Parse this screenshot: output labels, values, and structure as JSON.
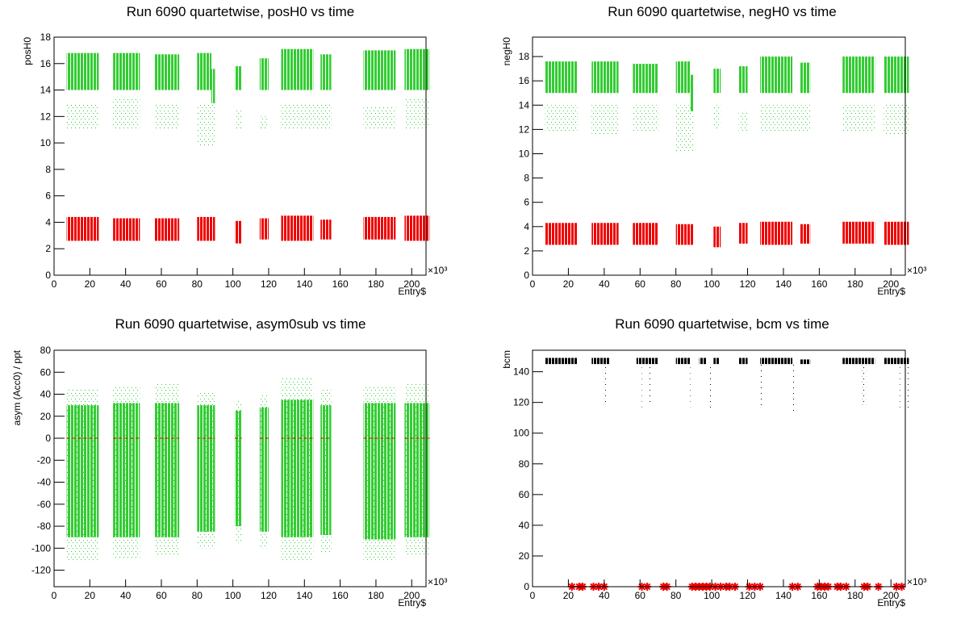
{
  "chart_data": [
    {
      "type": "scatter",
      "title": "Run 6090 quartetwise, posH0 vs time",
      "ylabel": "posH0",
      "xlabel": "Entry$",
      "x_multiplier": "×10³",
      "xlim": [
        0,
        208
      ],
      "ylim": [
        0,
        18
      ],
      "xticks": [
        0,
        20,
        40,
        60,
        80,
        100,
        120,
        140,
        160,
        180,
        200
      ],
      "yticks": [
        0,
        2,
        4,
        6,
        8,
        10,
        12,
        14,
        16,
        18
      ],
      "series": [
        {
          "color": "#33cc33",
          "density": "dense",
          "segments": [
            [
              7,
              25,
              14,
              16.8
            ],
            [
              33,
              48,
              14,
              16.8
            ],
            [
              56,
              70,
              14,
              16.7
            ],
            [
              80,
              88,
              14,
              16.8
            ],
            [
              88,
              90,
              13,
              15.6
            ],
            [
              101,
              105,
              14,
              15.8
            ],
            [
              115,
              120,
              14,
              16.4
            ],
            [
              127,
              145,
              14,
              17.1
            ],
            [
              149,
              155,
              14,
              16.7
            ],
            [
              173,
              191,
              14,
              17
            ],
            [
              196,
              210,
              14,
              17.1
            ]
          ]
        },
        {
          "color": "#33cc33",
          "density": "sparse",
          "segments": [
            [
              7,
              25,
              11,
              13
            ],
            [
              33,
              48,
              11,
              13.5
            ],
            [
              56,
              70,
              11,
              13
            ],
            [
              80,
              90,
              9.8,
              13
            ],
            [
              101,
              105,
              11,
              12.5
            ],
            [
              115,
              120,
              11,
              12
            ],
            [
              127,
              155,
              11,
              13
            ],
            [
              173,
              191,
              11,
              12.8
            ],
            [
              196,
              210,
              11,
              13.5
            ]
          ]
        },
        {
          "color": "#ee0000",
          "density": "dense",
          "segments": [
            [
              7,
              25,
              2.6,
              4.4
            ],
            [
              33,
              48,
              2.6,
              4.3
            ],
            [
              56,
              70,
              2.6,
              4.3
            ],
            [
              80,
              90,
              2.6,
              4.4
            ],
            [
              101,
              105,
              2.4,
              4.1
            ],
            [
              115,
              120,
              2.7,
              4.3
            ],
            [
              127,
              145,
              2.6,
              4.5
            ],
            [
              149,
              155,
              2.7,
              4.2
            ],
            [
              173,
              191,
              2.7,
              4.4
            ],
            [
              196,
              210,
              2.6,
              4.5
            ]
          ]
        }
      ]
    },
    {
      "type": "scatter",
      "title": "Run 6090 quartetwise, negH0 vs time",
      "ylabel": "negH0",
      "xlabel": "Entry$",
      "x_multiplier": "×10³",
      "xlim": [
        0,
        208
      ],
      "ylim": [
        0,
        19.6
      ],
      "xticks": [
        0,
        20,
        40,
        60,
        80,
        100,
        120,
        140,
        160,
        180,
        200
      ],
      "yticks": [
        0,
        2,
        4,
        6,
        8,
        10,
        12,
        14,
        16,
        18
      ],
      "series": [
        {
          "color": "#33cc33",
          "density": "dense",
          "segments": [
            [
              7,
              25,
              15,
              17.6
            ],
            [
              33,
              48,
              15,
              17.6
            ],
            [
              56,
              70,
              15,
              17.4
            ],
            [
              80,
              88,
              15,
              17.6
            ],
            [
              88,
              90,
              13.5,
              16.5
            ],
            [
              101,
              105,
              15,
              17
            ],
            [
              115,
              120,
              15,
              17.2
            ],
            [
              127,
              145,
              15,
              18
            ],
            [
              149,
              155,
              15,
              17.5
            ],
            [
              173,
              191,
              15,
              18
            ],
            [
              196,
              210,
              15,
              18
            ]
          ]
        },
        {
          "color": "#33cc33",
          "density": "sparse",
          "segments": [
            [
              7,
              25,
              11.8,
              14
            ],
            [
              33,
              48,
              11.5,
              14.2
            ],
            [
              56,
              70,
              11.8,
              14
            ],
            [
              80,
              90,
              10.2,
              14
            ],
            [
              101,
              105,
              12,
              14
            ],
            [
              115,
              120,
              11.8,
              13.5
            ],
            [
              127,
              155,
              11.8,
              14
            ],
            [
              173,
              191,
              11.8,
              14
            ],
            [
              196,
              210,
              11.6,
              14.2
            ]
          ]
        },
        {
          "color": "#ee0000",
          "density": "dense",
          "segments": [
            [
              7,
              25,
              2.5,
              4.3
            ],
            [
              33,
              48,
              2.5,
              4.3
            ],
            [
              56,
              70,
              2.5,
              4.3
            ],
            [
              80,
              90,
              2.5,
              4.2
            ],
            [
              101,
              105,
              2.3,
              4
            ],
            [
              115,
              120,
              2.6,
              4.3
            ],
            [
              127,
              145,
              2.5,
              4.4
            ],
            [
              149,
              155,
              2.6,
              4.2
            ],
            [
              173,
              191,
              2.6,
              4.4
            ],
            [
              196,
              210,
              2.5,
              4.4
            ]
          ]
        }
      ]
    },
    {
      "type": "scatter",
      "title": "Run 6090 quartetwise, asym0sub vs time",
      "ylabel": "asym (Acc0) / ppt",
      "xlabel": "Entry$",
      "x_multiplier": "×10³",
      "xlim": [
        0,
        208
      ],
      "ylim": [
        -135,
        80
      ],
      "xticks": [
        0,
        20,
        40,
        60,
        80,
        100,
        120,
        140,
        160,
        180,
        200
      ],
      "yticks": [
        -120,
        -100,
        -80,
        -60,
        -40,
        -20,
        0,
        20,
        40,
        60,
        80
      ],
      "reference_line": {
        "value": 0,
        "color": "#ee0000"
      },
      "series": [
        {
          "color": "#33cc33",
          "density": "dense",
          "segments": [
            [
              7,
              25,
              -90,
              30
            ],
            [
              33,
              48,
              -90,
              32
            ],
            [
              56,
              70,
              -90,
              32
            ],
            [
              80,
              90,
              -85,
              30
            ],
            [
              101,
              105,
              -80,
              25
            ],
            [
              115,
              120,
              -85,
              28
            ],
            [
              127,
              145,
              -90,
              35
            ],
            [
              149,
              155,
              -88,
              30
            ],
            [
              173,
              191,
              -92,
              32
            ],
            [
              196,
              210,
              -90,
              32
            ]
          ]
        },
        {
          "color": "#33cc33",
          "density": "sparse",
          "segments": [
            [
              7,
              25,
              -112,
              45
            ],
            [
              33,
              48,
              -110,
              48
            ],
            [
              56,
              70,
              -108,
              50
            ],
            [
              80,
              90,
              -100,
              42
            ],
            [
              101,
              105,
              -95,
              35
            ],
            [
              115,
              120,
              -100,
              40
            ],
            [
              127,
              145,
              -112,
              55
            ],
            [
              149,
              155,
              -105,
              45
            ],
            [
              173,
              191,
              -112,
              48
            ],
            [
              196,
              210,
              -108,
              50
            ]
          ]
        }
      ]
    },
    {
      "type": "scatter",
      "title": "Run 6090 quartetwise, bcm vs time",
      "ylabel": "bcm",
      "xlabel": "Entry$",
      "x_multiplier": "×10³",
      "xlim": [
        0,
        208
      ],
      "ylim": [
        0,
        154
      ],
      "xticks": [
        0,
        20,
        40,
        60,
        80,
        100,
        120,
        140,
        160,
        180,
        200
      ],
      "yticks": [
        0,
        20,
        40,
        60,
        80,
        100,
        120,
        140
      ],
      "series": [
        {
          "color": "#000000",
          "density": "dense",
          "segments": [
            [
              7,
              25,
              145,
              149
            ],
            [
              33,
              43,
              145,
              149
            ],
            [
              58,
              70,
              145,
              149
            ],
            [
              80,
              88,
              145,
              149
            ],
            [
              93,
              97,
              145,
              149
            ],
            [
              101,
              104,
              145,
              149
            ],
            [
              115,
              120,
              145,
              149
            ],
            [
              127,
              145,
              145,
              149
            ],
            [
              149,
              155,
              145,
              148
            ],
            [
              173,
              191,
              145,
              149
            ],
            [
              196,
              210,
              145,
              149
            ]
          ]
        },
        {
          "color": "#000000",
          "density": "sparse",
          "segments": [
            [
              40,
              41,
              118,
              145
            ],
            [
              61,
              62,
              115,
              145
            ],
            [
              65,
              66,
              120,
              145
            ],
            [
              88,
              89,
              117,
              145
            ],
            [
              99,
              100,
              114,
              145
            ],
            [
              127,
              128,
              117,
              145
            ],
            [
              145,
              146,
              114,
              145
            ],
            [
              184,
              186,
              118,
              145
            ],
            [
              205,
              206,
              114,
              145
            ],
            [
              209,
              210,
              114,
              145
            ]
          ]
        },
        {
          "color": "#ee0000",
          "marker": "star",
          "x": [
            22,
            26,
            28,
            34,
            37,
            40,
            61,
            64,
            73,
            75,
            89,
            91,
            93,
            95,
            97,
            99,
            102,
            105,
            108,
            110,
            113,
            121,
            124,
            127,
            145,
            148,
            159,
            161,
            163,
            165,
            170,
            172,
            175,
            185,
            187,
            193,
            203,
            206
          ],
          "values": [
            0,
            0,
            0,
            0,
            0,
            0,
            0,
            0,
            0,
            0,
            0,
            0,
            0,
            0,
            0,
            0,
            0,
            0,
            0,
            0,
            0,
            0,
            0,
            0,
            0,
            0,
            0,
            0,
            0,
            0,
            0,
            0,
            0,
            0,
            0,
            0,
            0,
            0
          ]
        }
      ]
    }
  ]
}
